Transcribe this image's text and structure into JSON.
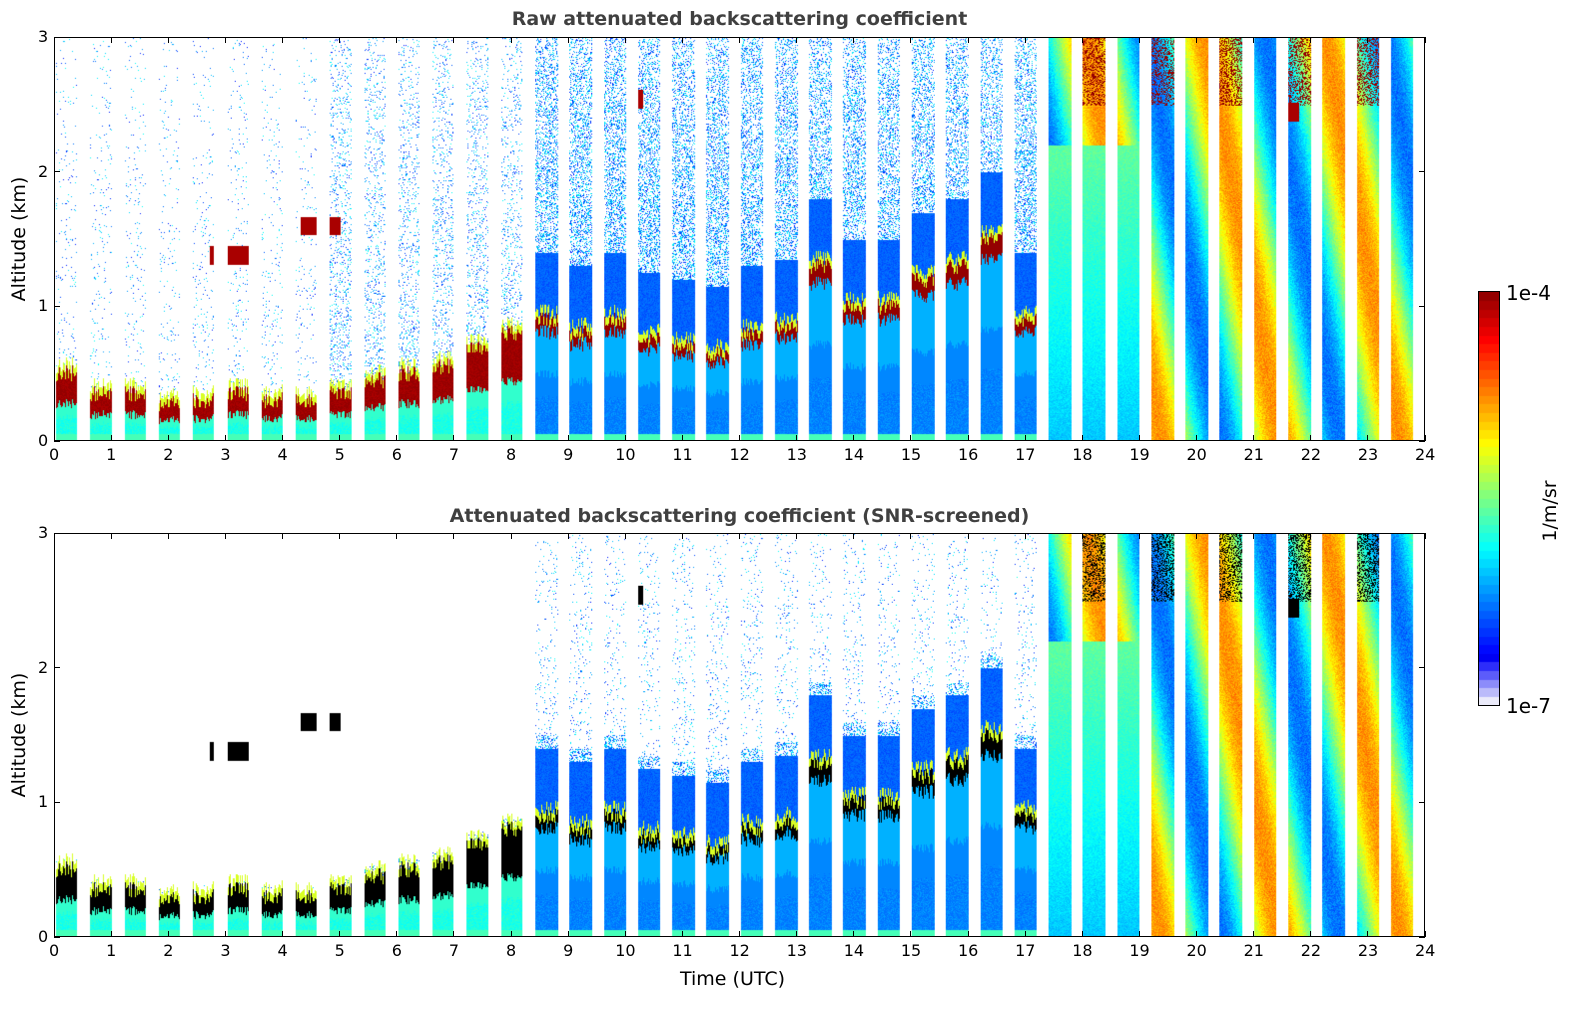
{
  "chart_data": [
    {
      "type": "heatmap",
      "title": "Raw attenuated backscattering coefficient",
      "xlabel": "",
      "ylabel": "Altitude (km)",
      "xlim": [
        0,
        24
      ],
      "ylim": [
        0,
        3
      ],
      "xticks": [
        "0",
        "1",
        "2",
        "3",
        "4",
        "5",
        "6",
        "7",
        "8",
        "9",
        "10",
        "11",
        "12",
        "13",
        "14",
        "15",
        "16",
        "17",
        "18",
        "19",
        "20",
        "21",
        "22",
        "23",
        "24"
      ],
      "yticks": [
        "0",
        "1",
        "2",
        "3"
      ],
      "colormap": "jet",
      "screening": "none",
      "features": {
        "boundary_layer_top_km": [
          0.5,
          0.35,
          0.35,
          0.28,
          0.3,
          0.35,
          0.3,
          0.3,
          0.35,
          0.45,
          0.5,
          0.55,
          0.7,
          0.8,
          0.9,
          0.8,
          0.9,
          0.75,
          0.7,
          0.65,
          0.8,
          0.85,
          1.3,
          1.0,
          1.0,
          1.2,
          1.3,
          1.5,
          0.9,
          2.8,
          3.0,
          3.0,
          3.0,
          3.0,
          3.0,
          3.0,
          3.0,
          3.0,
          3.0,
          3.0
        ],
        "elevated_layers": [
          {
            "time_start": 2.7,
            "time_end": 3.4,
            "altitude_km": 1.38
          },
          {
            "time_start": 4.3,
            "time_end": 5.0,
            "altitude_km": 1.6
          },
          {
            "time_start": 10.1,
            "time_end": 10.3,
            "altitude_km": 2.55
          },
          {
            "time_start": 21.4,
            "time_end": 21.8,
            "altitude_km": 2.45
          }
        ]
      }
    },
    {
      "type": "heatmap",
      "title": "Attenuated backscattering coefficient (SNR-screened)",
      "xlabel": "Time (UTC)",
      "ylabel": "Altitude (km)",
      "xlim": [
        0,
        24
      ],
      "ylim": [
        0,
        3
      ],
      "xticks": [
        "0",
        "1",
        "2",
        "3",
        "4",
        "5",
        "6",
        "7",
        "8",
        "9",
        "10",
        "11",
        "12",
        "13",
        "14",
        "15",
        "16",
        "17",
        "18",
        "19",
        "20",
        "21",
        "22",
        "23",
        "24"
      ],
      "yticks": [
        "0",
        "1",
        "2",
        "3"
      ],
      "colormap": "jet",
      "screening": "SNR"
    }
  ],
  "colorbar": {
    "label": "1/m/sr",
    "max_label": "1e-4",
    "min_label": "1e-7",
    "scale": "log",
    "range": [
      1e-07,
      0.0001
    ]
  },
  "colors": {
    "title": "#404040",
    "gap": "#ffffff",
    "saturated": "#000000"
  }
}
